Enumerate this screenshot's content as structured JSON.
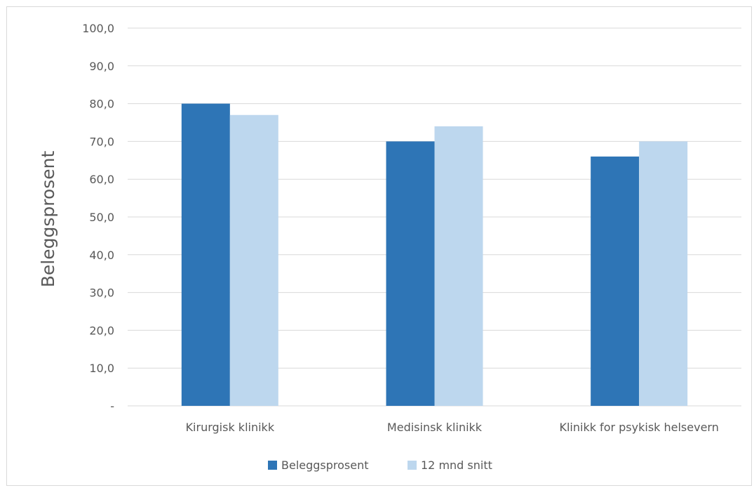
{
  "chart_data": {
    "type": "bar",
    "categories": [
      "Kirurgisk klinikk",
      "Medisinsk klinikk",
      "Klinikk for psykisk helsevern"
    ],
    "series": [
      {
        "name": "Beleggsprosent",
        "values": [
          80.0,
          70.0,
          66.0
        ],
        "color": "#2e75b6"
      },
      {
        "name": "12 mnd snitt",
        "values": [
          77.0,
          74.0,
          70.0
        ],
        "color": "#bdd7ee"
      }
    ],
    "ylabel": "Beleggsprosent",
    "ylim": [
      0,
      100
    ],
    "yticks": [
      0,
      10,
      20,
      30,
      40,
      50,
      60,
      70,
      80,
      90,
      100
    ],
    "ytick_labels": [
      "-",
      "10,0",
      "20,0",
      "30,0",
      "40,0",
      "50,0",
      "60,0",
      "70,0",
      "80,0",
      "90,0",
      "100,0"
    ],
    "grid": true,
    "legend": "bottom",
    "gridline_color": "#d9d9d9",
    "text_color": "#595959"
  }
}
